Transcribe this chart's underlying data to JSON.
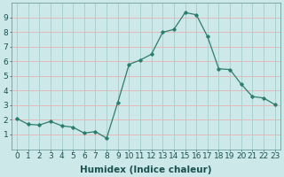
{
  "x": [
    0,
    1,
    2,
    3,
    4,
    5,
    6,
    7,
    8,
    9,
    10,
    11,
    12,
    13,
    14,
    15,
    16,
    17,
    18,
    19,
    20,
    21,
    22,
    23
  ],
  "y": [
    2.1,
    1.7,
    1.65,
    1.9,
    1.6,
    1.5,
    1.1,
    1.2,
    0.75,
    3.2,
    5.8,
    6.1,
    6.5,
    8.0,
    8.2,
    9.35,
    9.2,
    7.7,
    5.5,
    5.45,
    4.45,
    3.6,
    3.5,
    3.05
  ],
  "xlabel": "Humidex (Indice chaleur)",
  "ylim": [
    0,
    10
  ],
  "xlim_min": -0.5,
  "xlim_max": 23.5,
  "yticks": [
    1,
    2,
    3,
    4,
    5,
    6,
    7,
    8,
    9
  ],
  "xticks": [
    0,
    1,
    2,
    3,
    4,
    5,
    6,
    7,
    8,
    9,
    10,
    11,
    12,
    13,
    14,
    15,
    16,
    17,
    18,
    19,
    20,
    21,
    22,
    23
  ],
  "line_color": "#2d7d6e",
  "marker": "D",
  "marker_size": 1.8,
  "bg_color": "#cce8e8",
  "grid_color_major": "#b0cccc",
  "grid_color_minor": "#e8b8b8",
  "xlabel_fontsize": 7.5,
  "tick_fontsize": 6.5,
  "xlabel_fontweight": "bold",
  "xlabel_color": "#1a5050"
}
